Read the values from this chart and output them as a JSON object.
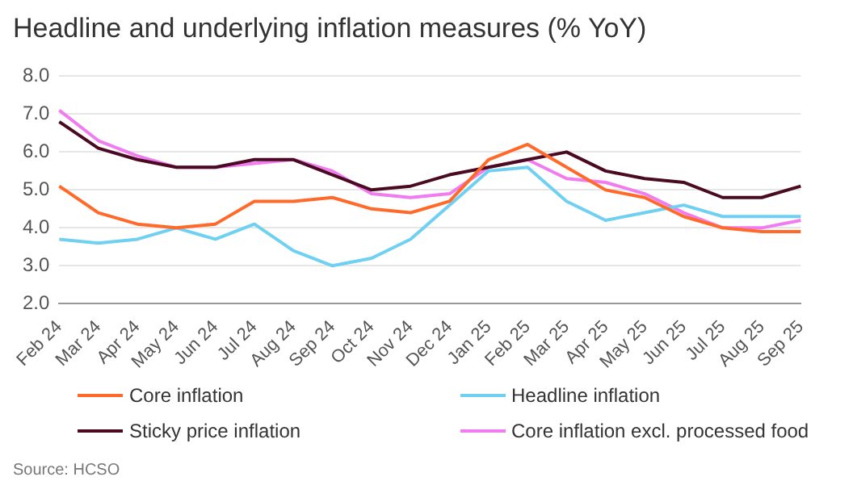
{
  "chart_data": {
    "type": "line",
    "title": "Headline and underlying inflation measures (% YoY)",
    "categories": [
      "Feb 24",
      "Mar 24",
      "Apr 24",
      "May 24",
      "Jun 24",
      "Jul 24",
      "Aug 24",
      "Sep 24",
      "Oct 24",
      "Nov 24",
      "Dec 24",
      "Jan 25",
      "Feb 25",
      "Mar 25",
      "Apr 25",
      "May 25",
      "Jun 25",
      "Jul 25",
      "Aug 25",
      "Sep 25"
    ],
    "series": [
      {
        "name": "Core inflation",
        "color": "#ff6a2b",
        "values": [
          5.1,
          4.4,
          4.1,
          4.0,
          4.1,
          4.7,
          4.7,
          4.8,
          4.5,
          4.4,
          4.7,
          5.8,
          6.2,
          5.6,
          5.0,
          4.8,
          4.3,
          4.0,
          3.9,
          3.9
        ]
      },
      {
        "name": "Headline inflation",
        "color": "#6fd0f2",
        "values": [
          3.7,
          3.6,
          3.7,
          4.0,
          3.7,
          4.1,
          3.4,
          3.0,
          3.2,
          3.7,
          4.6,
          5.5,
          5.6,
          4.7,
          4.2,
          4.4,
          4.6,
          4.3,
          4.3,
          4.3
        ]
      },
      {
        "name": "Sticky price inflation",
        "color": "#4a0a22",
        "values": [
          6.8,
          6.1,
          5.8,
          5.6,
          5.6,
          5.8,
          5.8,
          5.4,
          5.0,
          5.1,
          5.4,
          5.6,
          5.8,
          6.0,
          5.5,
          5.3,
          5.2,
          4.8,
          4.8,
          5.1
        ]
      },
      {
        "name": "Core inflation excl. processed food",
        "color": "#f07cf0",
        "values": [
          7.1,
          6.3,
          5.9,
          5.6,
          5.6,
          5.7,
          5.8,
          5.5,
          4.9,
          4.8,
          4.9,
          5.6,
          5.8,
          5.3,
          5.2,
          4.9,
          4.4,
          4.0,
          4.0,
          4.2
        ]
      }
    ],
    "ylim": [
      2,
      8
    ],
    "yticks": [
      {
        "value": 2,
        "label": "2.0"
      },
      {
        "value": 3,
        "label": "3.0"
      },
      {
        "value": 4,
        "label": "4.0"
      },
      {
        "value": 5,
        "label": "5.0"
      },
      {
        "value": 6,
        "label": "6.0"
      },
      {
        "value": 7,
        "label": "7.0"
      },
      {
        "value": 8,
        "label": "8.0"
      }
    ],
    "grid": "y",
    "legend": "bottom",
    "marker": "none",
    "line_style": "solid",
    "annotations": [
      "Source: HCSO"
    ]
  }
}
